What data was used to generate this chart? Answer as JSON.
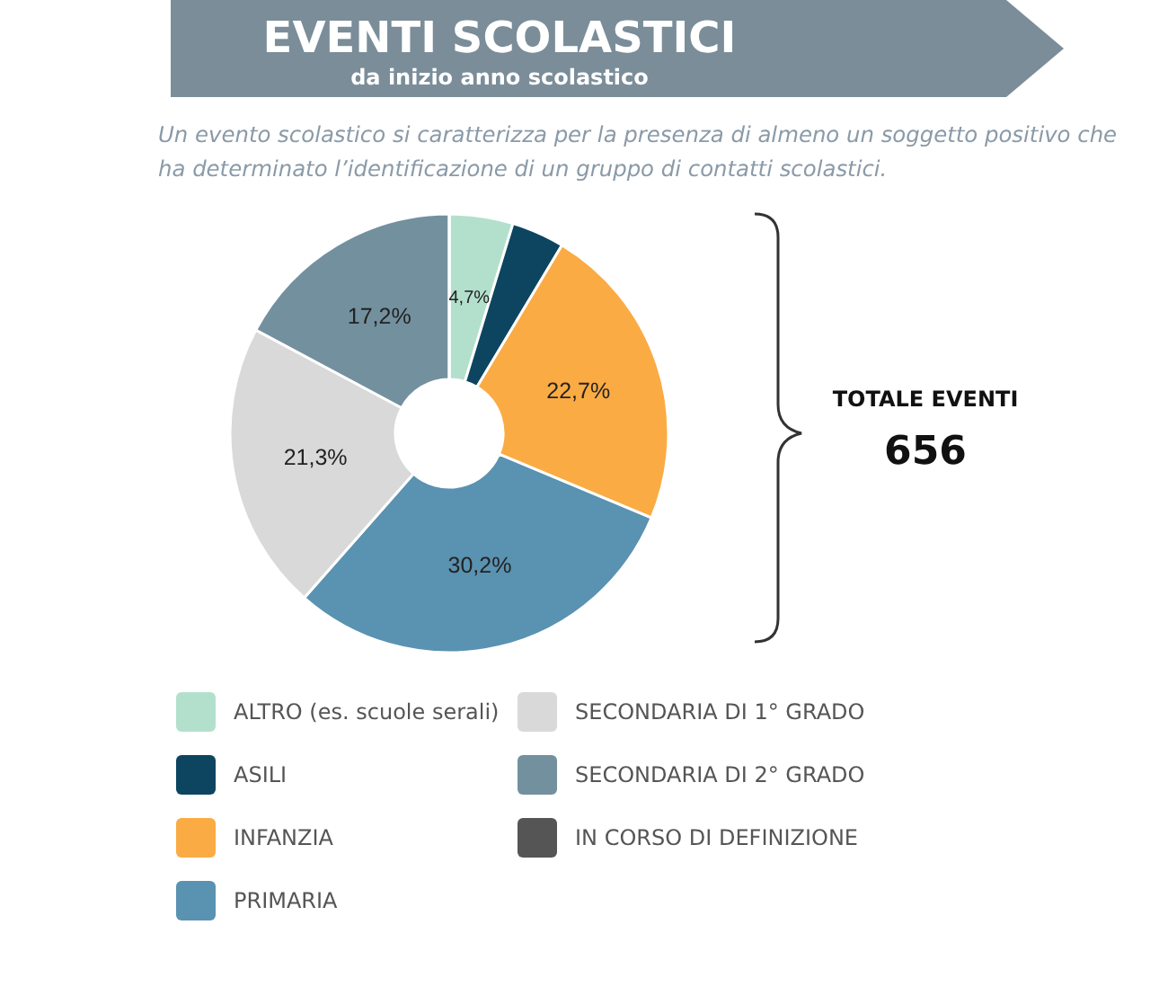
{
  "chart_data": {
    "type": "donut",
    "title": "EVENTI SCOLASTICI",
    "subtitle": "da inizio anno scolastico",
    "categories": [
      "ALTRO (es. scuole serali)",
      "ASILI",
      "INFANZIA",
      "PRIMARIA",
      "SECONDARIA DI 1° GRADO",
      "SECONDARIA DI 2° GRADO",
      "IN CORSO DI DEFINIZIONE"
    ],
    "values": [
      4.7,
      3.9,
      22.7,
      30.2,
      21.3,
      17.2,
      0
    ],
    "colors": [
      "#b3e0cc",
      "#0d4561",
      "#fbab43",
      "#5a92b1",
      "#d9d9d9",
      "#73909e",
      "#555555"
    ],
    "value_labels": [
      "4,7%",
      null,
      "22,7%",
      "30,2%",
      "21,3%",
      "17,2%",
      null
    ],
    "legend": "bottom",
    "annotations": [
      "Un evento scolastico si caratterizza per la presenza di almeno un soggetto positivo che ha determinato l’identificazione di un gruppo di contatti scolastici.",
      "TOTALE EVENTI",
      "656"
    ]
  }
}
